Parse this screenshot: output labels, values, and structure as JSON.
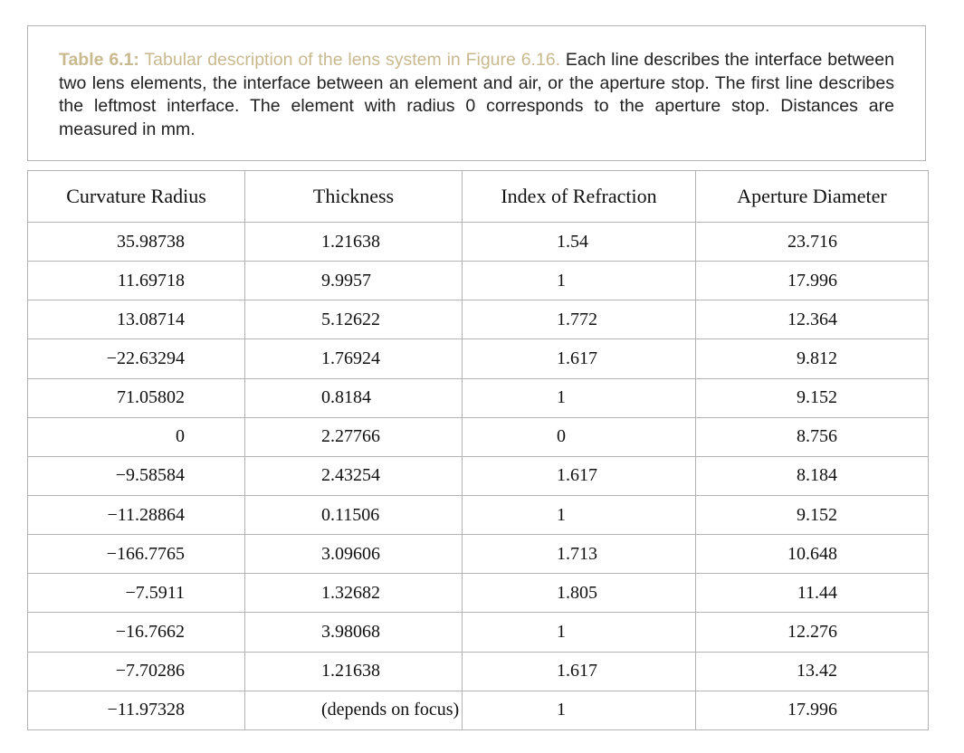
{
  "caption": {
    "label": "Table 6.1:",
    "title": "Tabular description of the lens system in Figure 6.16.",
    "body": "Each line describes the interface between two lens elements, the interface between an element and air, or the aperture stop. The first line describes the leftmost interface. The element with radius 0 corresponds to the aperture stop. Distances are measured in mm."
  },
  "table": {
    "headers": [
      "Curvature Radius",
      "Thickness",
      "Index of Refraction",
      "Aperture Diameter"
    ],
    "rows": [
      [
        "35.98738",
        "1.21638",
        "1.54",
        "23.716"
      ],
      [
        "11.69718",
        "9.9957",
        "1",
        "17.996"
      ],
      [
        "13.08714",
        "5.12622",
        "1.772",
        "12.364"
      ],
      [
        "−22.63294",
        "1.76924",
        "1.617",
        "9.812"
      ],
      [
        "71.05802",
        "0.8184",
        "1",
        "9.152"
      ],
      [
        "0",
        "2.27766",
        "0",
        "8.756"
      ],
      [
        "−9.58584",
        "2.43254",
        "1.617",
        "8.184"
      ],
      [
        "−11.28864",
        "0.11506",
        "1",
        "9.152"
      ],
      [
        "−166.7765",
        "3.09606",
        "1.713",
        "10.648"
      ],
      [
        "−7.5911",
        "1.32682",
        "1.805",
        "11.44"
      ],
      [
        "−16.7662",
        "3.98068",
        "1",
        "12.276"
      ],
      [
        "−7.70286",
        "1.21638",
        "1.617",
        "13.42"
      ],
      [
        "−11.97328",
        "(depends on focus)",
        "1",
        "17.996"
      ]
    ]
  }
}
